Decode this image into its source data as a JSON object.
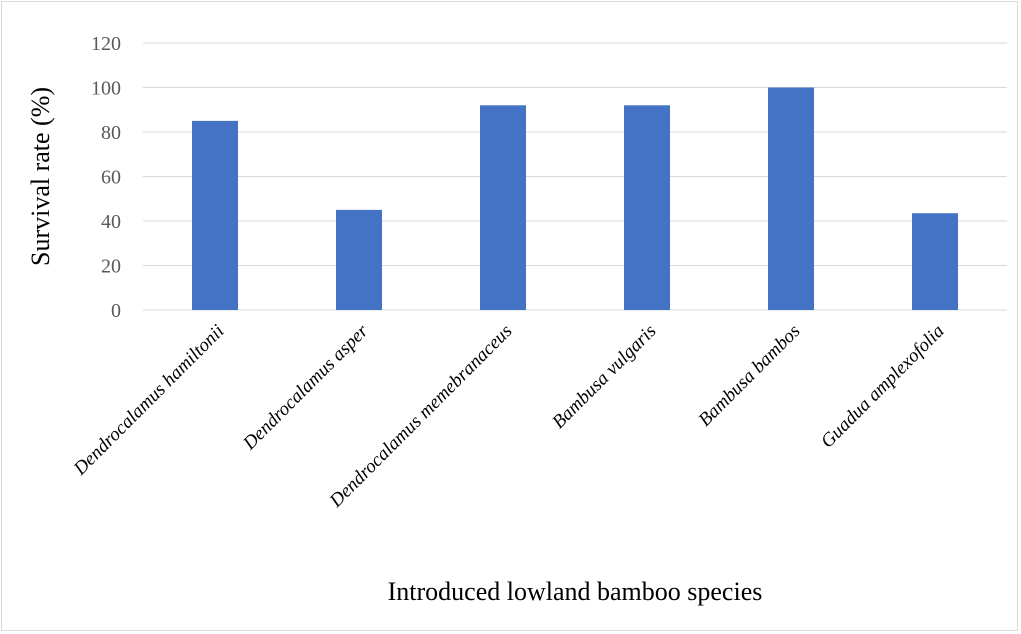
{
  "chart_data": {
    "type": "bar",
    "title": "",
    "xlabel": "Introduced lowland bamboo species",
    "ylabel": "Survival rate (%)",
    "categories": [
      "Dendrocalamus hamiltonii",
      "Dendrocalamus asper",
      "Dendrocalamus memebranaceus",
      "Bambusa vulgaris",
      "Bambusa bambos",
      "Guadua amplexofolia"
    ],
    "values": [
      85,
      45,
      92,
      92,
      100,
      43.5
    ],
    "ylim": [
      0,
      120
    ],
    "yticks": [
      0,
      20,
      40,
      60,
      80,
      100,
      120
    ],
    "grid": true,
    "legend": "none",
    "colors": {
      "bar": "#4472C4",
      "grid": "#d9d9d9",
      "tick_text": "#595959"
    }
  }
}
